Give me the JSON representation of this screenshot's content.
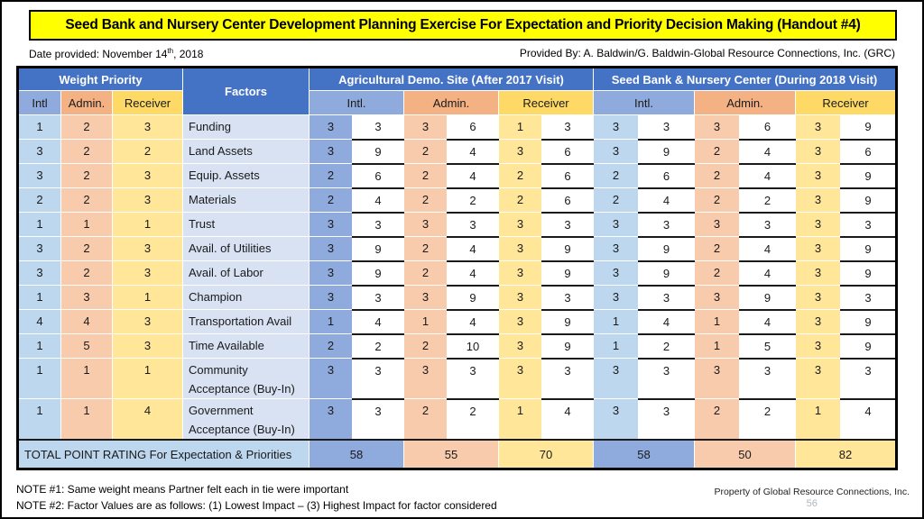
{
  "slide": {
    "title": "Seed Bank and Nursery Center Development Planning Exercise For Expectation and Priority Decision Making (Handout #4)",
    "date_prefix": "Date provided:  November 14",
    "date_sup": "th",
    "date_suffix": ", 2018",
    "provided_by": "Provided By: A. Baldwin/G. Baldwin-Global Resource Connections, Inc. (GRC)",
    "note1": "NOTE #1: Same weight means Partner felt each in tie were important",
    "note2": "NOTE #2: Factor Values are as follows: (1) Lowest Impact –   (3) Highest Impact for factor considered",
    "property": "Property of Global Resource Connections, Inc.",
    "page_number": "56"
  },
  "table": {
    "headers": {
      "weight_priority": "Weight Priority",
      "factors": "Factors",
      "agri": "Agricultural Demo. Site (After 2017  Visit)",
      "seedbank": "Seed Bank & Nursery Center (During 2018 Visit)",
      "weight_sub": [
        "Intl",
        "Admin.",
        "Receiver"
      ],
      "agri_sub": [
        "Intl.",
        "Admin.",
        "Receiver"
      ],
      "sb_sub": [
        "Intl.",
        "Admin.",
        "Receiver"
      ]
    },
    "rows": [
      {
        "weights": [
          1,
          2,
          3
        ],
        "factor": "Funding",
        "agri": [
          3,
          3,
          3,
          6,
          1,
          3
        ],
        "sb": [
          3,
          3,
          3,
          6,
          3,
          9
        ]
      },
      {
        "weights": [
          3,
          2,
          2
        ],
        "factor": "Land Assets",
        "agri": [
          3,
          9,
          2,
          4,
          3,
          6
        ],
        "sb": [
          3,
          9,
          2,
          4,
          3,
          6
        ]
      },
      {
        "weights": [
          3,
          2,
          3
        ],
        "factor": "Equip. Assets",
        "agri": [
          2,
          6,
          2,
          4,
          2,
          6
        ],
        "sb": [
          2,
          6,
          2,
          4,
          3,
          9
        ]
      },
      {
        "weights": [
          2,
          2,
          3
        ],
        "factor": "Materials",
        "agri": [
          2,
          4,
          2,
          2,
          2,
          6
        ],
        "sb": [
          2,
          4,
          2,
          2,
          3,
          9
        ]
      },
      {
        "weights": [
          1,
          1,
          1
        ],
        "factor": "Trust",
        "agri": [
          3,
          3,
          3,
          3,
          3,
          3
        ],
        "sb": [
          3,
          3,
          3,
          3,
          3,
          3
        ]
      },
      {
        "weights": [
          3,
          2,
          3
        ],
        "factor": "Avail. of Utilities",
        "agri": [
          3,
          9,
          2,
          4,
          3,
          9
        ],
        "sb": [
          3,
          9,
          2,
          4,
          3,
          9
        ]
      },
      {
        "weights": [
          3,
          2,
          3
        ],
        "factor": "Avail. of Labor",
        "agri": [
          3,
          9,
          2,
          4,
          3,
          9
        ],
        "sb": [
          3,
          9,
          2,
          4,
          3,
          9
        ]
      },
      {
        "weights": [
          1,
          3,
          1
        ],
        "factor": "Champion",
        "agri": [
          3,
          3,
          3,
          9,
          3,
          3
        ],
        "sb": [
          3,
          3,
          3,
          9,
          3,
          3
        ]
      },
      {
        "weights": [
          4,
          4,
          3
        ],
        "factor": "Transportation Avail",
        "agri": [
          1,
          4,
          1,
          4,
          3,
          9
        ],
        "sb": [
          1,
          4,
          1,
          4,
          3,
          9
        ]
      },
      {
        "weights": [
          1,
          5,
          3
        ],
        "factor": "Time Available",
        "agri": [
          2,
          2,
          2,
          10,
          3,
          9
        ],
        "sb": [
          1,
          2,
          1,
          5,
          3,
          9
        ]
      },
      {
        "weights": [
          1,
          1,
          1
        ],
        "factor": "Community Acceptance (Buy-In)",
        "agri": [
          3,
          3,
          3,
          3,
          3,
          3
        ],
        "sb": [
          3,
          3,
          3,
          3,
          3,
          3
        ]
      },
      {
        "weights": [
          1,
          1,
          4
        ],
        "factor": "Government Acceptance (Buy-In)",
        "agri": [
          3,
          3,
          2,
          2,
          1,
          4
        ],
        "sb": [
          3,
          3,
          2,
          2,
          1,
          4
        ]
      }
    ],
    "total": {
      "label": "TOTAL POINT RATING For Expectation &  Priorities",
      "agri": [
        58,
        55,
        70
      ],
      "sb": [
        58,
        50,
        82
      ]
    }
  },
  "colors": {
    "header-blue": "#4472C4",
    "mid-blue": "#8FAADC",
    "light-blue": "#BDD7EE",
    "peach": "#F8CBAD",
    "peach-deep": "#F4B183",
    "gold": "#FFD966",
    "light-yellow": "#FFE699",
    "lavender": "#D9E2F3",
    "title-yellow": "#FFFF00",
    "line-black": "#1a1a1a"
  }
}
